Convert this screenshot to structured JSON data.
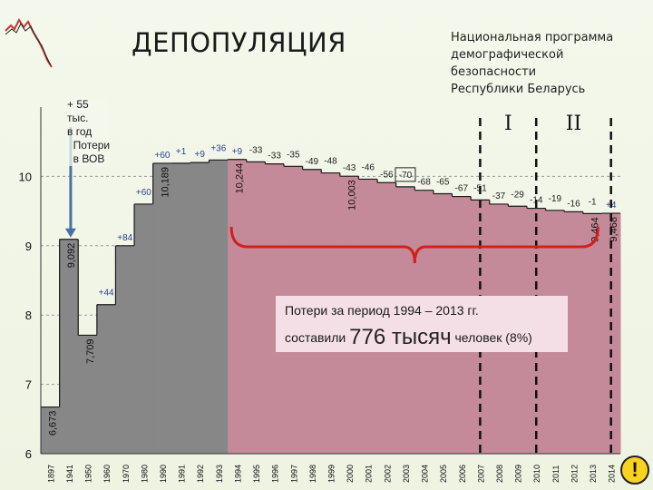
{
  "title": "ДЕПОПУЛЯЦИЯ",
  "program": [
    "Национальная программа",
    "демографической",
    "безопасности",
    "Республики Беларусь"
  ],
  "loss_box": {
    "line1": "Потери за период 1994 – 2013 гг.",
    "prefix": "составили",
    "big": "776 тысяч",
    "suffix": "человек (8%)"
  },
  "war_note": "+ 55\nтыс.\nв год\n  Потери\n  в ВОВ",
  "warning_glyph": "!",
  "chart_data": {
    "type": "bar",
    "years": [
      "1897",
      "1941",
      "1950",
      "1960",
      "1970",
      "1980",
      "1990",
      "1991",
      "1992",
      "1993",
      "1994",
      "1995",
      "1996",
      "1997",
      "1998",
      "1999",
      "2000",
      "2001",
      "2002",
      "2003",
      "2004",
      "2005",
      "2006",
      "2007",
      "2008",
      "2009",
      "2010",
      "2011",
      "2012",
      "2013",
      "2014"
    ],
    "values": [
      6.673,
      9.092,
      7.709,
      8.15,
      9.0,
      9.6,
      10.189,
      10.19,
      10.2,
      10.237,
      10.244,
      10.21,
      10.18,
      10.145,
      10.1,
      10.05,
      10.003,
      9.96,
      9.91,
      9.85,
      9.8,
      9.75,
      9.71,
      9.66,
      9.6,
      9.57,
      9.54,
      9.51,
      9.49,
      9.464,
      9.468
    ],
    "ylim": [
      6,
      11
    ],
    "yticks": [
      6,
      7,
      8,
      9,
      10
    ],
    "value_labels": {
      "1897": "6,673",
      "1941": "9,092",
      "1950": "7,709",
      "1990": "10,189",
      "1994": "10,244",
      "2000": "10,003",
      "2013": "9,464",
      "2014": "9,468"
    },
    "change_labels": [
      {
        "year": "1960",
        "text": "+44"
      },
      {
        "year": "1970",
        "text": "+84"
      },
      {
        "year": "1980",
        "text": "+60"
      },
      {
        "year": "1990",
        "text": "+60"
      },
      {
        "year": "1991",
        "text": "+1"
      },
      {
        "year": "1992",
        "text": "+9"
      },
      {
        "year": "1993",
        "text": "+36"
      },
      {
        "year": "1994",
        "text": "+9"
      },
      {
        "year": "1995",
        "text": "-33"
      },
      {
        "year": "1996",
        "text": "-33"
      },
      {
        "year": "1997",
        "text": "-35"
      },
      {
        "year": "1998",
        "text": "-49"
      },
      {
        "year": "1999",
        "text": "-48"
      },
      {
        "year": "2000",
        "text": "-43"
      },
      {
        "year": "2001",
        "text": "-46"
      },
      {
        "year": "2002",
        "text": "-56"
      },
      {
        "year": "2003",
        "text": "-70"
      },
      {
        "year": "2004",
        "text": "-68"
      },
      {
        "year": "2005",
        "text": "-65"
      },
      {
        "year": "2006",
        "text": "-67"
      },
      {
        "year": "2007",
        "text": "-51"
      },
      {
        "year": "2008",
        "text": "-37"
      },
      {
        "year": "2009",
        "text": "-29"
      },
      {
        "year": "2010",
        "text": "-14"
      },
      {
        "year": "2011",
        "text": "-19"
      },
      {
        "year": "2012",
        "text": "-16"
      },
      {
        "year": "2013",
        "text": "-1"
      },
      {
        "year": "2014",
        "text": "+4"
      }
    ],
    "stages": [
      {
        "label": "I",
        "from_year": "2007",
        "to_year": "2010"
      },
      {
        "label": "II",
        "from_year": "2010",
        "to_year": "2014"
      }
    ],
    "colors": {
      "gray": "#878787",
      "pink": "#c58a99",
      "dark": "#1a1a1a",
      "arrow": "#4a6fa5",
      "brace": "#d0211c",
      "change_pos": "#2d3f8f"
    }
  }
}
